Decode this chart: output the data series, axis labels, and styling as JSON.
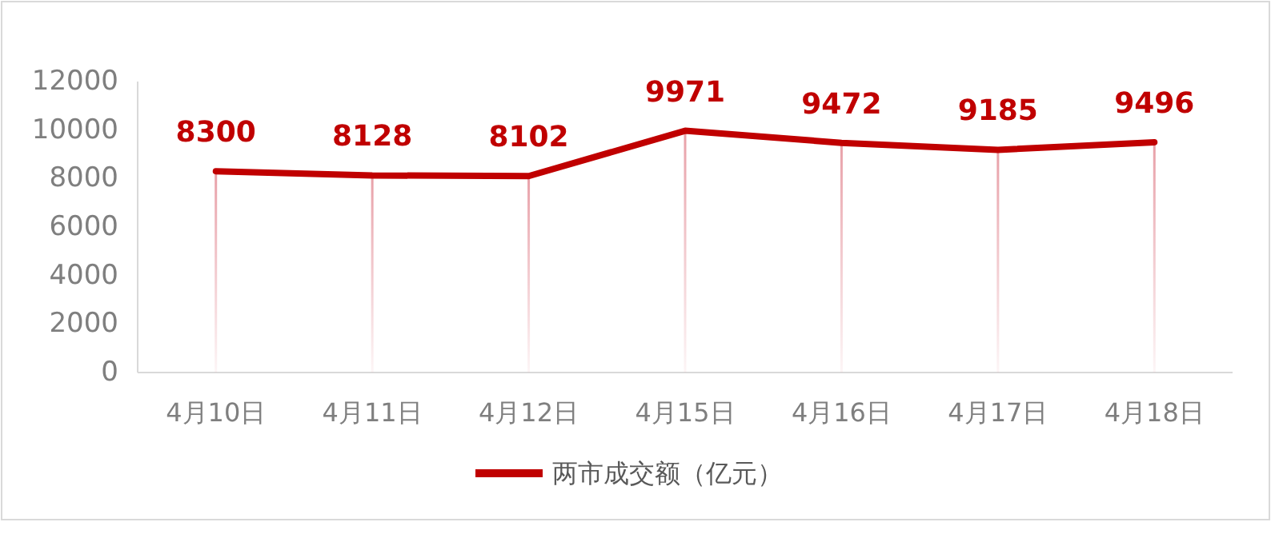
{
  "chart_data": {
    "type": "line",
    "categories": [
      "4月10日",
      "4月11日",
      "4月12日",
      "4月15日",
      "4月16日",
      "4月17日",
      "4月18日"
    ],
    "series": [
      {
        "type": "bar",
        "color": "#e8a0a8",
        "values": [
          8300,
          8128,
          8102,
          9971,
          9472,
          9185,
          9496
        ]
      },
      {
        "name": "两市成交额（亿元）",
        "color": "#c00000",
        "values": [
          8300,
          8128,
          8102,
          9971,
          9472,
          9185,
          9496
        ],
        "value_labels": [
          "8300",
          "8128",
          "8102",
          "9971",
          "9472",
          "9185",
          "9496"
        ]
      }
    ],
    "ylim": [
      0,
      12000
    ],
    "yticks": [
      0,
      2000,
      4000,
      6000,
      8000,
      10000,
      12000
    ],
    "grid": false,
    "legend": "bottom",
    "marker": "none",
    "line_style": "solid"
  }
}
